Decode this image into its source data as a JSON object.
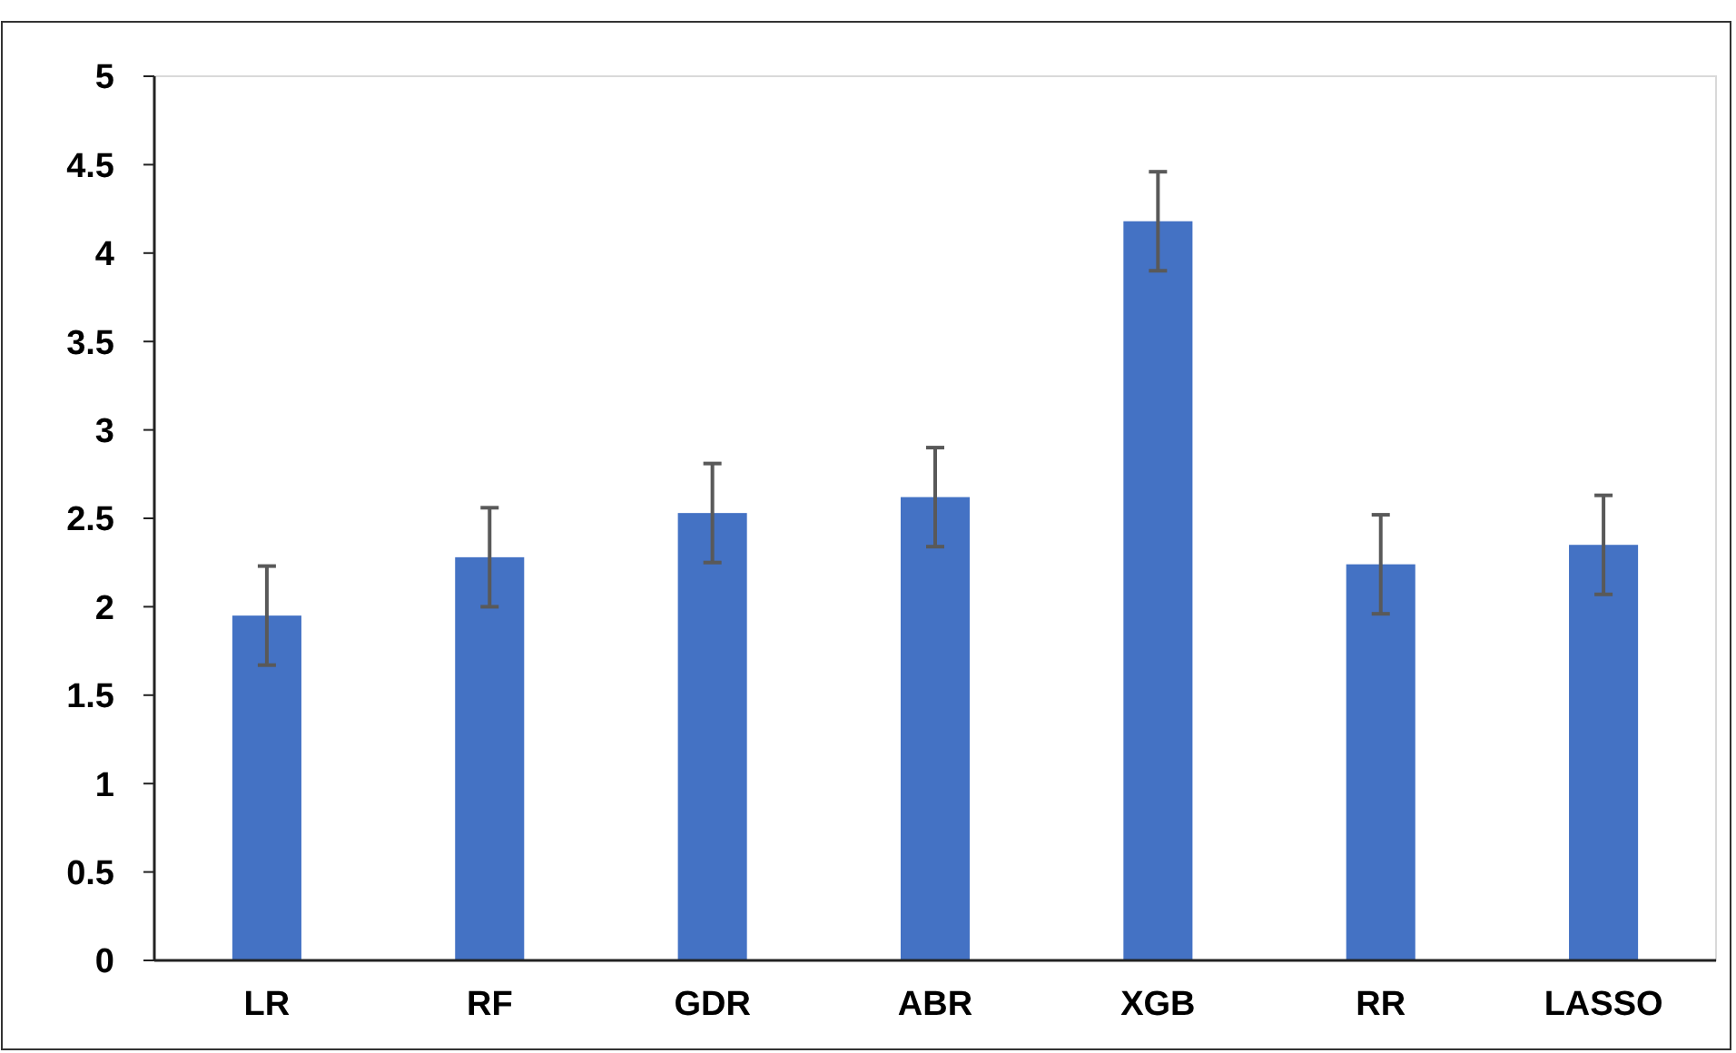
{
  "chart_data": {
    "type": "bar",
    "categories": [
      "LR",
      "RF",
      "GDR",
      "ABR",
      "XGB",
      "RR",
      "LASSO"
    ],
    "values": [
      1.95,
      2.28,
      2.53,
      2.62,
      4.18,
      2.24,
      2.35
    ],
    "errors": [
      0.28,
      0.28,
      0.28,
      0.28,
      0.28,
      0.28,
      0.28
    ],
    "color": "#4472c4",
    "ylim": [
      0,
      5
    ],
    "yticks": [
      0,
      0.5,
      1,
      1.5,
      2,
      2.5,
      3,
      3.5,
      4,
      4.5,
      5
    ],
    "grid": false
  }
}
